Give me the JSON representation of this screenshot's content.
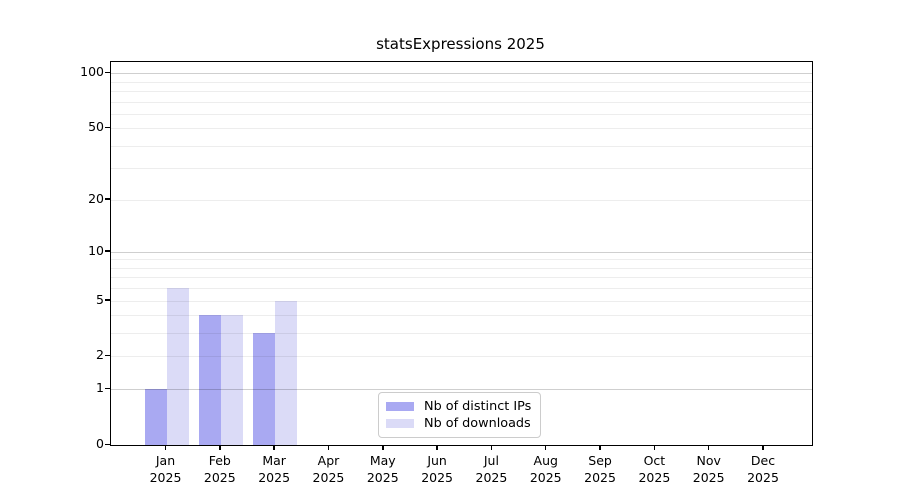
{
  "chart_data": {
    "type": "bar",
    "title": "statsExpressions 2025",
    "categories": [
      "Jan",
      "Feb",
      "Mar",
      "Apr",
      "May",
      "Jun",
      "Jul",
      "Aug",
      "Sep",
      "Oct",
      "Nov",
      "Dec"
    ],
    "x_sublabel": "2025",
    "series": [
      {
        "name": "Nb of distinct IPs",
        "color": "#a9a9f2",
        "values": [
          1,
          4,
          3,
          0,
          0,
          0,
          0,
          0,
          0,
          0,
          0,
          0
        ]
      },
      {
        "name": "Nb of downloads",
        "color": "#dbdbf7",
        "values": [
          6,
          4,
          5,
          0,
          0,
          0,
          0,
          0,
          0,
          0,
          0,
          0
        ]
      }
    ],
    "xlabel": "",
    "ylabel": "",
    "yscale": "log10(1+x)",
    "ylim": [
      0,
      115
    ],
    "yticks": [
      0,
      1,
      2,
      5,
      10,
      20,
      50,
      100
    ],
    "major_gridlines": [
      1,
      10,
      100
    ],
    "minor_gridlines": [
      2,
      3,
      4,
      5,
      6,
      7,
      8,
      9,
      20,
      30,
      40,
      50,
      60,
      70,
      80,
      90
    ],
    "grid": true,
    "legend_position": "lower center"
  }
}
